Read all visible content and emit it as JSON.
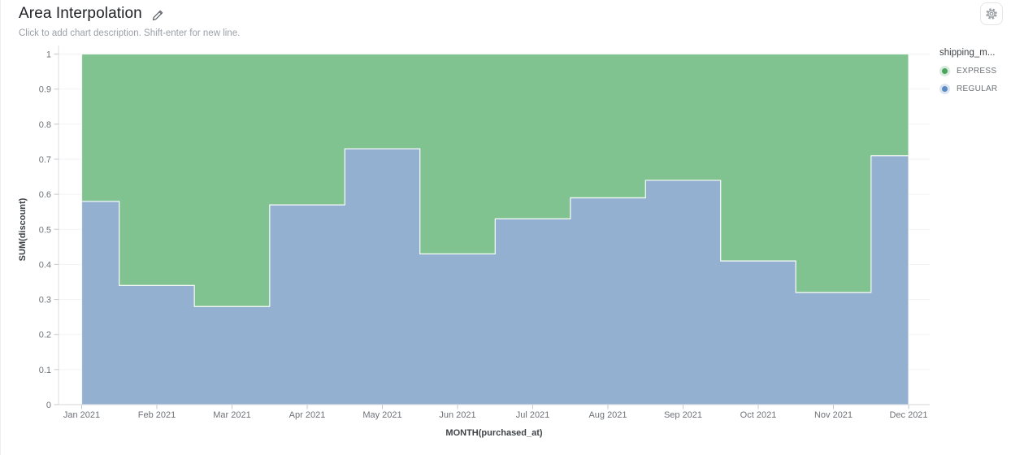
{
  "header": {
    "title": "Area Interpolation",
    "subtitle": "Click to add chart description. Shift-enter for new line."
  },
  "icons": {
    "edit": "pencil-icon",
    "settings": "gear-icon"
  },
  "legend": {
    "title": "shipping_m...",
    "items": [
      {
        "label": "EXPRESS",
        "color": "#4aa45e"
      },
      {
        "label": "REGULAR",
        "color": "#5b89c2"
      }
    ]
  },
  "chart_data": {
    "type": "area",
    "interpolation": "step",
    "stacked": true,
    "normalized_to_one": true,
    "title": "Area Interpolation",
    "xlabel": "MONTH(purchased_at)",
    "ylabel": "SUM(discount)",
    "x": [
      "Jan 2021",
      "Feb 2021",
      "Mar 2021",
      "Apr 2021",
      "May 2021",
      "Jun 2021",
      "Jul 2021",
      "Aug 2021",
      "Sep 2021",
      "Oct 2021",
      "Nov 2021",
      "Dec 2021"
    ],
    "series": [
      {
        "name": "REGULAR",
        "fill_color": "#8fadcf",
        "values": [
          0.58,
          0.34,
          0.28,
          0.57,
          0.73,
          0.43,
          0.53,
          0.59,
          0.64,
          0.41,
          0.32,
          0.71
        ]
      },
      {
        "name": "EXPRESS",
        "fill_color": "#7dc08d",
        "values": [
          0.42,
          0.66,
          0.72,
          0.43,
          0.27,
          0.57,
          0.47,
          0.41,
          0.36,
          0.59,
          0.68,
          0.29
        ]
      }
    ],
    "ylim": [
      0,
      1
    ],
    "ytick_labels": [
      "0",
      "0.1",
      "0.2",
      "0.3",
      "0.4",
      "0.5",
      "0.6",
      "0.7",
      "0.8",
      "0.9",
      "1"
    ],
    "grid": "horizontal",
    "legend_position": "right"
  }
}
